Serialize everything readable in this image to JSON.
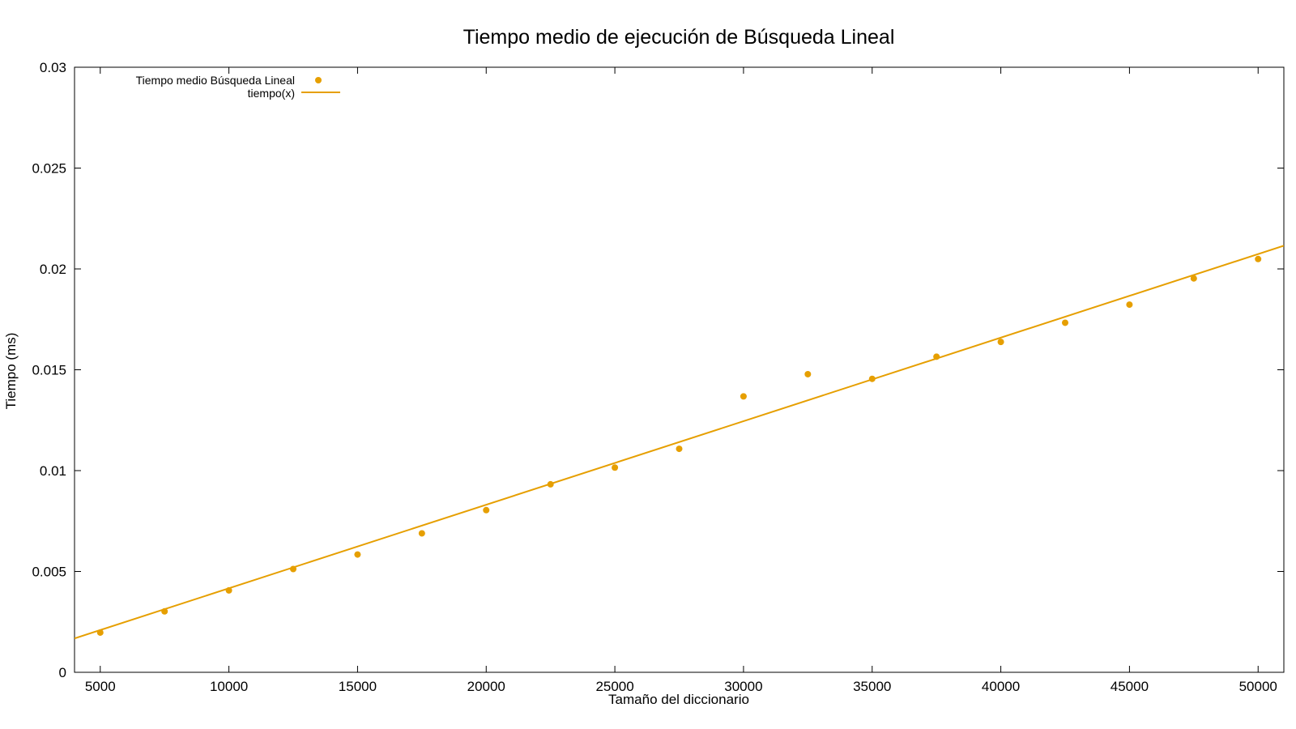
{
  "chart_data": {
    "type": "scatter",
    "title": "Tiempo medio de ejecución de Búsqueda Lineal",
    "xlabel": "Tamaño del diccionario",
    "ylabel": "Tiempo (ms)",
    "xlim": [
      4000,
      51000
    ],
    "ylim": [
      0,
      0.03
    ],
    "x_ticks": [
      5000,
      10000,
      15000,
      20000,
      25000,
      30000,
      35000,
      40000,
      45000,
      50000
    ],
    "y_ticks": [
      0,
      0.005,
      0.01,
      0.015,
      0.02,
      0.025,
      0.03
    ],
    "x_tick_labels": [
      "5000",
      "10000",
      "15000",
      "20000",
      "25000",
      "30000",
      "35000",
      "40000",
      "45000",
      "50000"
    ],
    "y_tick_labels": [
      "0",
      "0.005",
      "0.01",
      "0.015",
      "0.02",
      "0.025",
      "0.03"
    ],
    "grid": false,
    "legend_position": "top-left",
    "series": [
      {
        "name": "Tiempo medio Búsqueda Lineal",
        "kind": "points",
        "color": "#e69f00",
        "x": [
          5000,
          7500,
          10000,
          12500,
          15000,
          17500,
          20000,
          22500,
          25000,
          27500,
          30000,
          32500,
          35000,
          37500,
          40000,
          42500,
          45000,
          47500,
          50000
        ],
        "y": [
          0.00197,
          0.00302,
          0.00406,
          0.00512,
          0.00584,
          0.00689,
          0.00804,
          0.00932,
          0.01015,
          0.01108,
          0.01368,
          0.01478,
          0.01455,
          0.01565,
          0.01638,
          0.01733,
          0.01823,
          0.01953,
          0.02049
        ]
      },
      {
        "name": "tiempo(x)",
        "kind": "line",
        "color": "#e69f00",
        "x": [
          4000,
          51000
        ],
        "y": [
          0.00168,
          0.02115
        ]
      }
    ]
  }
}
